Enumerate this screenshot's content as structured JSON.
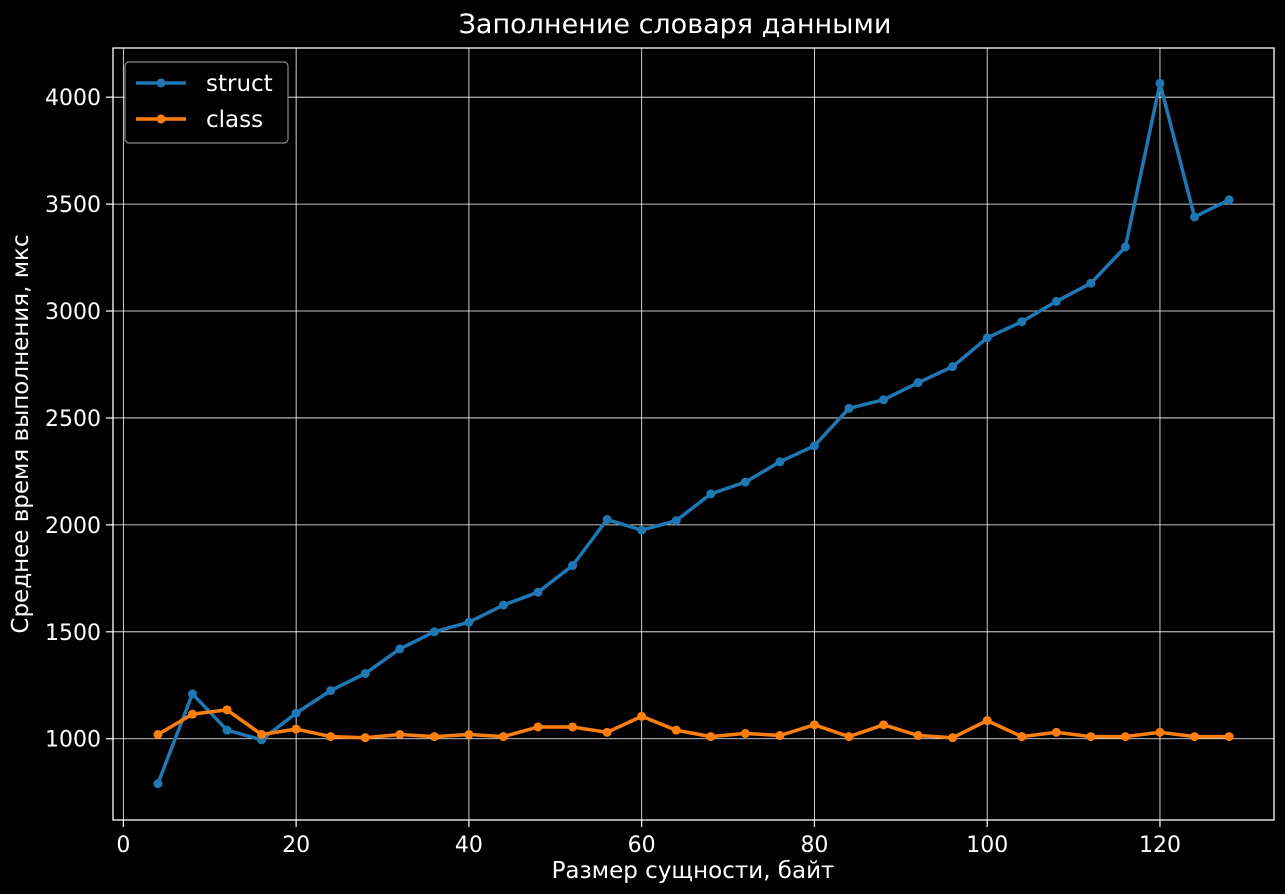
{
  "chart_data": {
    "type": "line",
    "title": "Заполнение словаря данными",
    "xlabel": "Размер сущности, байт",
    "ylabel": "Среднее время выполнения, мкс",
    "xlim": [
      -1.2,
      133.2
    ],
    "ylim": [
      620,
      4230
    ],
    "xticks": [
      0,
      20,
      40,
      60,
      80,
      100,
      120
    ],
    "yticks": [
      1000,
      1500,
      2000,
      2500,
      3000,
      3500,
      4000
    ],
    "grid": true,
    "legend_position": "top-left",
    "x": [
      4,
      8,
      12,
      16,
      20,
      24,
      28,
      32,
      36,
      40,
      44,
      48,
      52,
      56,
      60,
      64,
      68,
      72,
      76,
      80,
      84,
      88,
      92,
      96,
      100,
      104,
      108,
      112,
      116,
      120,
      124,
      128
    ],
    "series": [
      {
        "name": "struct",
        "color": "#1f77b4",
        "values": [
          790,
          1210,
          1040,
          995,
          1120,
          1225,
          1305,
          1420,
          1500,
          1545,
          1625,
          1685,
          1810,
          2025,
          1975,
          2020,
          2145,
          2200,
          2295,
          2370,
          2545,
          2585,
          2665,
          2740,
          2875,
          2950,
          3045,
          3130,
          3300,
          4065,
          3440,
          3520
        ]
      },
      {
        "name": "class",
        "color": "#ff7f0e",
        "values": [
          1020,
          1115,
          1135,
          1020,
          1045,
          1010,
          1005,
          1020,
          1010,
          1020,
          1010,
          1055,
          1055,
          1030,
          1105,
          1040,
          1010,
          1025,
          1015,
          1065,
          1010,
          1065,
          1015,
          1005,
          1085,
          1010,
          1030,
          1010,
          1010,
          1030,
          1010,
          1010
        ]
      }
    ]
  }
}
